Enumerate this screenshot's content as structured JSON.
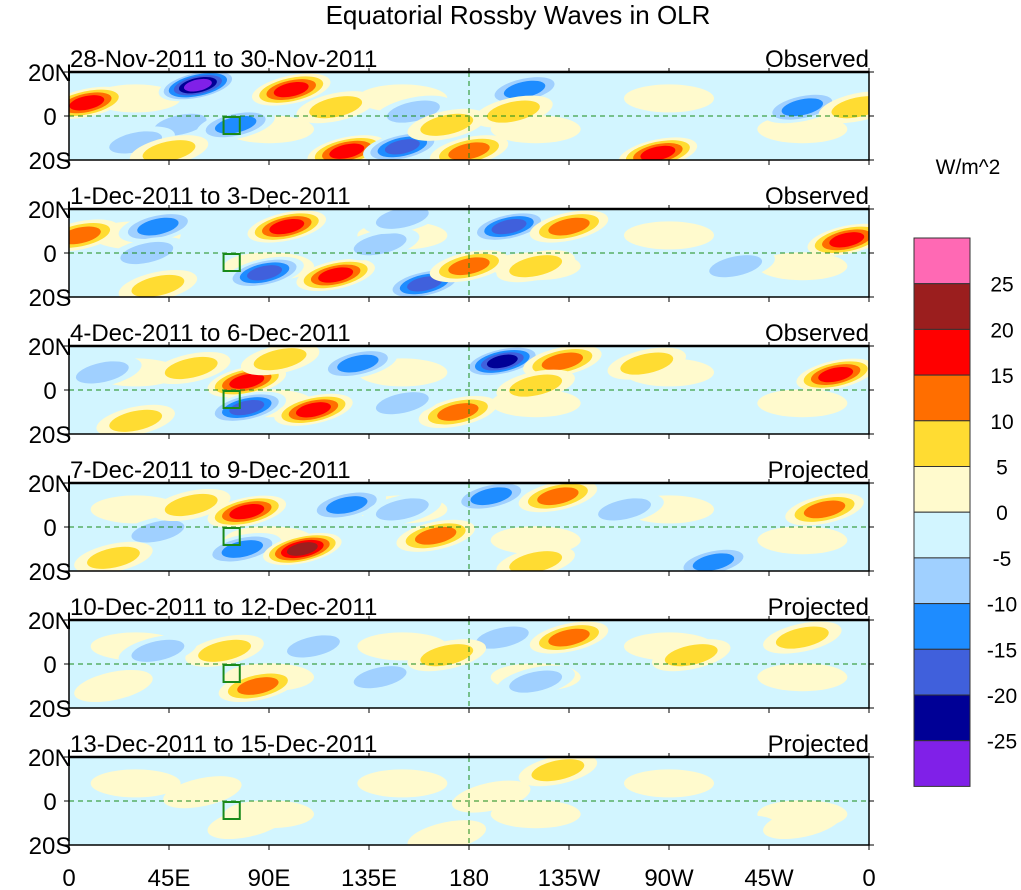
{
  "chart_data": {
    "type": "heatmap",
    "title": "Equatorial Rossby Waves in OLR",
    "units_label": "W/m^2",
    "xlabel": "",
    "ylabel": "",
    "x_range": [
      0,
      360
    ],
    "y_range": [
      -20,
      20
    ],
    "x_ticks": [
      {
        "value": 0,
        "label": "0"
      },
      {
        "value": 45,
        "label": "45E"
      },
      {
        "value": 90,
        "label": "90E"
      },
      {
        "value": 135,
        "label": "135E"
      },
      {
        "value": 180,
        "label": "180"
      },
      {
        "value": 225,
        "label": "135W"
      },
      {
        "value": 270,
        "label": "90W"
      },
      {
        "value": 315,
        "label": "45W"
      },
      {
        "value": 360,
        "label": "0"
      }
    ],
    "y_ticks": [
      {
        "value": 20,
        "label": "20N"
      },
      {
        "value": 0,
        "label": "0"
      },
      {
        "value": -20,
        "label": "20S"
      }
    ],
    "colorbar": {
      "levels": [
        -25,
        -20,
        -15,
        -10,
        -5,
        0,
        5,
        10,
        15,
        20,
        25
      ],
      "level_labels": [
        "-25",
        "-20",
        "-15",
        "-10",
        "-5",
        "0",
        "5",
        "10",
        "15",
        "20",
        "25"
      ],
      "colors": [
        "#8020e8",
        "#000096",
        "#4060dc",
        "#1e8cff",
        "#a0d0ff",
        "#d2f5ff",
        "#fffacd",
        "#ffdc32",
        "#ff6e00",
        "#ff0000",
        "#9b1e1e",
        "#ff69b4"
      ]
    },
    "box_region": {
      "lon": [
        70,
        80
      ],
      "lat": [
        -10,
        0
      ]
    },
    "panels": [
      {
        "period": "28-Nov-2011 to 30-Nov-2011",
        "kind": "Observed",
        "anomalies": [
          {
            "lon": 8,
            "lat": 6,
            "value": 20
          },
          {
            "lon": 58,
            "lat": 14,
            "value": -28
          },
          {
            "lon": 50,
            "lat": -4,
            "value": -10
          },
          {
            "lon": 75,
            "lat": -4,
            "value": -15
          },
          {
            "lon": 100,
            "lat": 12,
            "value": 20
          },
          {
            "lon": 120,
            "lat": 4,
            "value": 12
          },
          {
            "lon": 125,
            "lat": -16,
            "value": 20
          },
          {
            "lon": 150,
            "lat": -14,
            "value": -18
          },
          {
            "lon": 155,
            "lat": 2,
            "value": -12
          },
          {
            "lon": 180,
            "lat": -16,
            "value": 16
          },
          {
            "lon": 170,
            "lat": -4,
            "value": 12
          },
          {
            "lon": 205,
            "lat": 12,
            "value": -15
          },
          {
            "lon": 200,
            "lat": 2,
            "value": 12
          },
          {
            "lon": 265,
            "lat": -17,
            "value": 18
          },
          {
            "lon": 330,
            "lat": 4,
            "value": -15
          },
          {
            "lon": 355,
            "lat": 4,
            "value": 12
          },
          {
            "lon": 30,
            "lat": -12,
            "value": -8
          },
          {
            "lon": 45,
            "lat": -16,
            "value": 10
          }
        ]
      },
      {
        "period": "1-Dec-2011 to 3-Dec-2011",
        "kind": "Observed",
        "anomalies": [
          {
            "lon": 5,
            "lat": 8,
            "value": 15
          },
          {
            "lon": 40,
            "lat": 12,
            "value": -15
          },
          {
            "lon": 35,
            "lat": 0,
            "value": -12
          },
          {
            "lon": 98,
            "lat": 12,
            "value": 18
          },
          {
            "lon": 88,
            "lat": -9,
            "value": -22
          },
          {
            "lon": 120,
            "lat": -10,
            "value": 22
          },
          {
            "lon": 140,
            "lat": 4,
            "value": -10
          },
          {
            "lon": 160,
            "lat": -14,
            "value": -18
          },
          {
            "lon": 180,
            "lat": -6,
            "value": 14
          },
          {
            "lon": 198,
            "lat": 12,
            "value": -22
          },
          {
            "lon": 225,
            "lat": 12,
            "value": 14
          },
          {
            "lon": 210,
            "lat": -6,
            "value": 8
          },
          {
            "lon": 300,
            "lat": -6,
            "value": -10
          },
          {
            "lon": 350,
            "lat": 6,
            "value": 18
          },
          {
            "lon": 40,
            "lat": -15,
            "value": 12
          },
          {
            "lon": 150,
            "lat": 16,
            "value": -12
          }
        ]
      },
      {
        "period": "4-Dec-2011 to 6-Dec-2011",
        "kind": "Observed",
        "anomalies": [
          {
            "lon": 15,
            "lat": 8,
            "value": -10
          },
          {
            "lon": 80,
            "lat": 4,
            "value": 18
          },
          {
            "lon": 80,
            "lat": -8,
            "value": -22
          },
          {
            "lon": 110,
            "lat": -9,
            "value": 22
          },
          {
            "lon": 95,
            "lat": 14,
            "value": 12
          },
          {
            "lon": 130,
            "lat": 12,
            "value": -14
          },
          {
            "lon": 175,
            "lat": -10,
            "value": 14
          },
          {
            "lon": 150,
            "lat": -6,
            "value": -12
          },
          {
            "lon": 195,
            "lat": 13,
            "value": -24
          },
          {
            "lon": 222,
            "lat": 13,
            "value": 16
          },
          {
            "lon": 210,
            "lat": 2,
            "value": 8
          },
          {
            "lon": 260,
            "lat": 12,
            "value": 10
          },
          {
            "lon": 345,
            "lat": 7,
            "value": 18
          },
          {
            "lon": 30,
            "lat": -14,
            "value": 10
          },
          {
            "lon": 55,
            "lat": 10,
            "value": 10
          }
        ]
      },
      {
        "period": "7-Dec-2011 to 9-Dec-2011",
        "kind": "Projected",
        "anomalies": [
          {
            "lon": 80,
            "lat": 7,
            "value": 18
          },
          {
            "lon": 78,
            "lat": -10,
            "value": -16
          },
          {
            "lon": 105,
            "lat": -10,
            "value": 24
          },
          {
            "lon": 125,
            "lat": 10,
            "value": -14
          },
          {
            "lon": 150,
            "lat": 8,
            "value": -12
          },
          {
            "lon": 165,
            "lat": -4,
            "value": 14
          },
          {
            "lon": 190,
            "lat": 14,
            "value": -16
          },
          {
            "lon": 220,
            "lat": 14,
            "value": 14
          },
          {
            "lon": 250,
            "lat": 8,
            "value": -8
          },
          {
            "lon": 340,
            "lat": 8,
            "value": 14
          },
          {
            "lon": 290,
            "lat": -16,
            "value": -14
          },
          {
            "lon": 40,
            "lat": -2,
            "value": -10
          },
          {
            "lon": 55,
            "lat": 10,
            "value": 8
          },
          {
            "lon": 20,
            "lat": -14,
            "value": 8
          },
          {
            "lon": 210,
            "lat": -16,
            "value": 12
          }
        ]
      },
      {
        "period": "10-Dec-2011 to 12-Dec-2011",
        "kind": "Projected",
        "anomalies": [
          {
            "lon": 85,
            "lat": -10,
            "value": 14
          },
          {
            "lon": 70,
            "lat": 6,
            "value": 8
          },
          {
            "lon": 110,
            "lat": 8,
            "value": -8
          },
          {
            "lon": 140,
            "lat": -6,
            "value": -8
          },
          {
            "lon": 195,
            "lat": 12,
            "value": -10
          },
          {
            "lon": 225,
            "lat": 12,
            "value": 14
          },
          {
            "lon": 170,
            "lat": 4,
            "value": 8
          },
          {
            "lon": 280,
            "lat": 4,
            "value": 8
          },
          {
            "lon": 210,
            "lat": -8,
            "value": -8
          },
          {
            "lon": 330,
            "lat": 12,
            "value": 8
          },
          {
            "lon": 40,
            "lat": 6,
            "value": -8
          },
          {
            "lon": 20,
            "lat": -10,
            "value": 6
          }
        ]
      },
      {
        "period": "13-Dec-2011 to 15-Dec-2011",
        "kind": "Projected",
        "anomalies": [
          {
            "lon": 80,
            "lat": -10,
            "value": 7
          },
          {
            "lon": 110,
            "lat": 10,
            "value": -7
          },
          {
            "lon": 220,
            "lat": 14,
            "value": 8
          },
          {
            "lon": 170,
            "lat": -16,
            "value": 7
          },
          {
            "lon": 60,
            "lat": 4,
            "value": 6
          },
          {
            "lon": 300,
            "lat": -14,
            "value": -6
          },
          {
            "lon": 330,
            "lat": -10,
            "value": 5
          },
          {
            "lon": 190,
            "lat": 2,
            "value": 5
          }
        ]
      }
    ]
  }
}
